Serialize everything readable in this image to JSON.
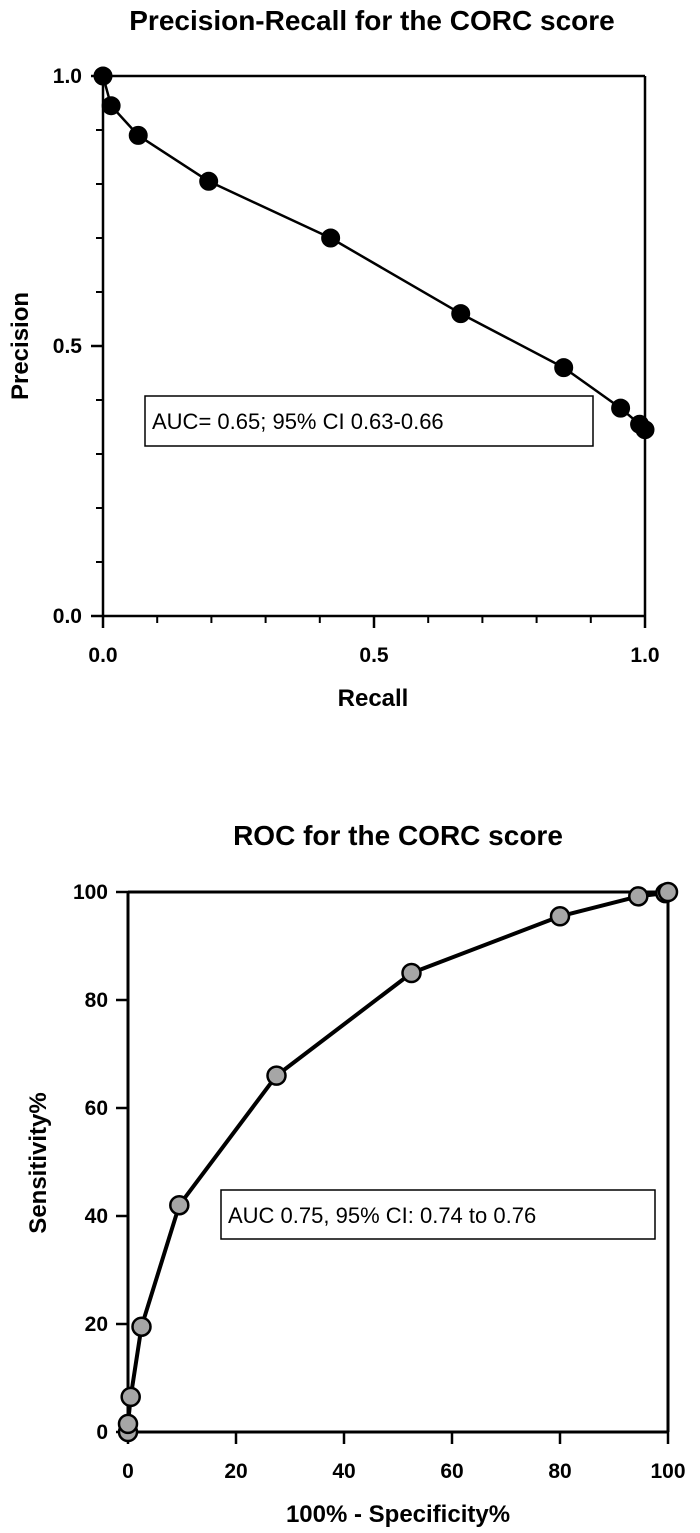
{
  "chart_data": [
    {
      "type": "line",
      "title": "Precision-Recall for the CORC score",
      "xlabel": "Recall",
      "ylabel": "Precision",
      "xlim": [
        0,
        1
      ],
      "ylim": [
        0,
        1
      ],
      "x_ticks": [
        "0.0",
        "0.5",
        "1.0"
      ],
      "y_ticks": [
        "0.0",
        "0.5",
        "1.0"
      ],
      "annotation": "AUC= 0.65; 95% CI 0.63-0.66",
      "marker_fill": "#000000",
      "series": [
        {
          "x": [
            0.0,
            0.015,
            0.065,
            0.195,
            0.42,
            0.66,
            0.85,
            0.955,
            0.99,
            1.0
          ],
          "y": [
            1.0,
            0.945,
            0.89,
            0.805,
            0.7,
            0.56,
            0.46,
            0.385,
            0.355,
            0.345
          ]
        }
      ]
    },
    {
      "type": "line",
      "title": "ROC for the CORC score",
      "xlabel": "100% - Specificity%",
      "ylabel": "Sensitivity%",
      "xlim": [
        0,
        100
      ],
      "ylim": [
        0,
        100
      ],
      "x_ticks": [
        "0",
        "20",
        "40",
        "60",
        "80",
        "100"
      ],
      "y_ticks": [
        "0",
        "20",
        "40",
        "60",
        "80",
        "100"
      ],
      "annotation": "AUC 0.75, 95% CI: 0.74 to 0.76",
      "marker_fill": "#a6a6a6",
      "series": [
        {
          "x": [
            0.0,
            0.0,
            0.5,
            2.5,
            9.5,
            27.5,
            52.5,
            80.0,
            94.5,
            99.5,
            100.0
          ],
          "y": [
            0.0,
            1.5,
            6.5,
            19.5,
            42.0,
            66.0,
            85.0,
            95.5,
            99.2,
            99.8,
            100.0
          ]
        }
      ]
    }
  ]
}
